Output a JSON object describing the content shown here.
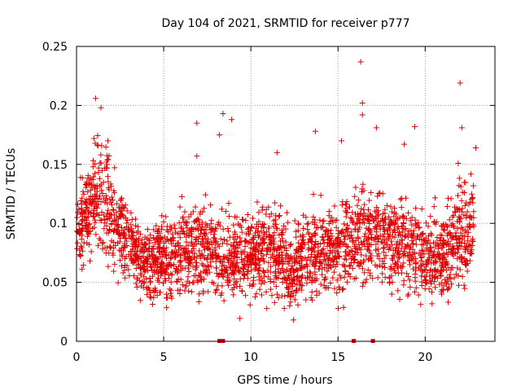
{
  "chart_data": {
    "type": "scatter",
    "title": "Day 104 of 2021, SRMTID for receiver p777",
    "xlabel": "GPS time / hours",
    "ylabel": "SRMTID / TECUs",
    "xlim": [
      0,
      24
    ],
    "ylim": [
      0,
      0.25
    ],
    "x_ticks": [
      0,
      5,
      10,
      15,
      20
    ],
    "y_ticks": [
      0,
      0.05,
      0.1,
      0.15,
      0.2,
      0.25
    ],
    "x_tick_labels": [
      "0",
      "5",
      "10",
      "15",
      "20"
    ],
    "y_tick_labels": [
      "0",
      "0.05",
      "0.1",
      "0.15",
      "0.2",
      "0.25"
    ],
    "grid": true,
    "marker": "+",
    "point_color": "#e00000",
    "x_range_of_data": [
      0,
      22.8
    ],
    "trend": {
      "x": [
        0,
        0.5,
        1.0,
        1.3,
        2.0,
        3.0,
        4.0,
        5.0,
        6.0,
        7.0,
        8.0,
        9.0,
        10.0,
        11.0,
        12.0,
        12.5,
        13.0,
        14.0,
        15.0,
        16.0,
        17.0,
        18.0,
        19.0,
        20.0,
        21.0,
        22.0,
        22.8
      ],
      "mean": [
        0.095,
        0.105,
        0.12,
        0.13,
        0.1,
        0.085,
        0.065,
        0.07,
        0.075,
        0.08,
        0.075,
        0.07,
        0.075,
        0.08,
        0.065,
        0.06,
        0.07,
        0.08,
        0.08,
        0.09,
        0.095,
        0.085,
        0.08,
        0.075,
        0.07,
        0.09,
        0.1
      ],
      "spread": [
        0.02,
        0.025,
        0.03,
        0.035,
        0.025,
        0.02,
        0.02,
        0.022,
        0.022,
        0.025,
        0.022,
        0.022,
        0.022,
        0.025,
        0.022,
        0.022,
        0.022,
        0.025,
        0.025,
        0.028,
        0.028,
        0.025,
        0.025,
        0.022,
        0.022,
        0.03,
        0.03
      ]
    },
    "outliers": [
      {
        "x": 16.3,
        "y": 0.237
      },
      {
        "x": 22.0,
        "y": 0.219
      },
      {
        "x": 1.1,
        "y": 0.206
      },
      {
        "x": 16.4,
        "y": 0.202
      },
      {
        "x": 1.4,
        "y": 0.198
      },
      {
        "x": 8.4,
        "y": 0.193
      },
      {
        "x": 16.4,
        "y": 0.192
      },
      {
        "x": 8.9,
        "y": 0.188
      },
      {
        "x": 6.9,
        "y": 0.185
      },
      {
        "x": 19.4,
        "y": 0.182
      },
      {
        "x": 22.1,
        "y": 0.181
      },
      {
        "x": 13.7,
        "y": 0.178
      },
      {
        "x": 8.2,
        "y": 0.175
      },
      {
        "x": 17.2,
        "y": 0.181
      },
      {
        "x": 1.0,
        "y": 0.172
      },
      {
        "x": 1.8,
        "y": 0.17
      },
      {
        "x": 15.2,
        "y": 0.17
      },
      {
        "x": 22.9,
        "y": 0.164
      },
      {
        "x": 11.5,
        "y": 0.16
      },
      {
        "x": 6.9,
        "y": 0.157
      },
      {
        "x": 18.8,
        "y": 0.167
      }
    ],
    "zero_points_x": [
      8.2,
      8.4,
      15.9,
      17.0
    ]
  }
}
